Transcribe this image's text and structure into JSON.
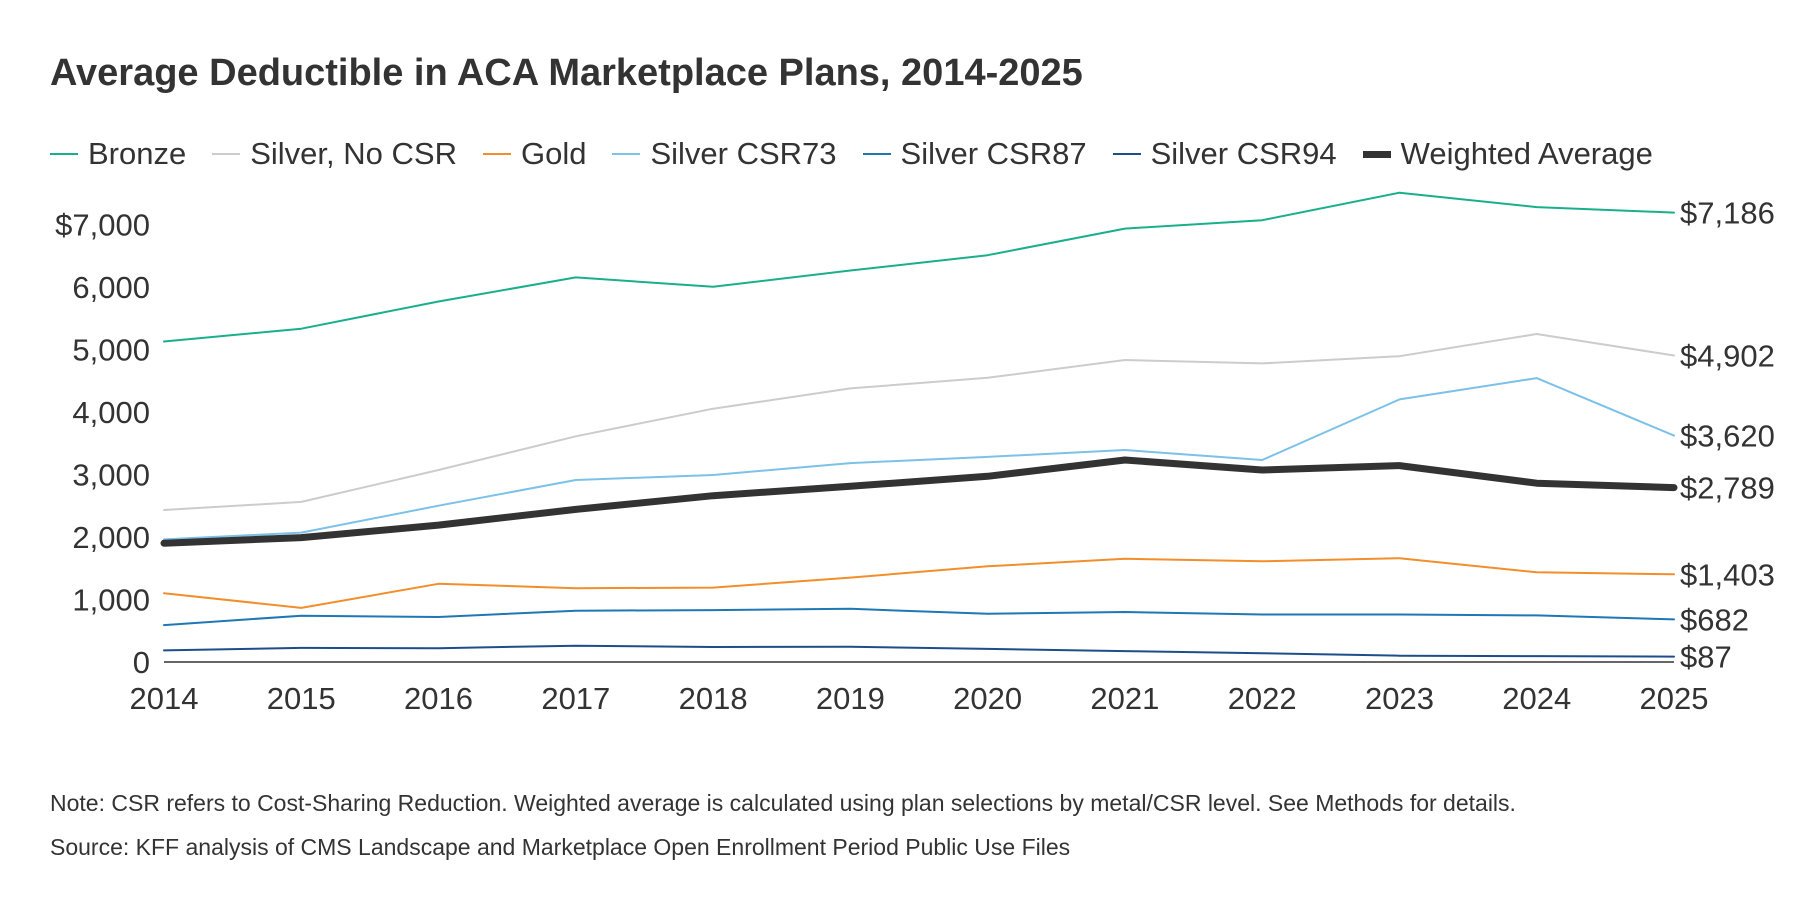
{
  "chart_data": {
    "type": "line",
    "title": "Average Deductible in ACA Marketplace Plans, 2014-2025",
    "x": [
      "2014",
      "2015",
      "2016",
      "2017",
      "2018",
      "2019",
      "2020",
      "2021",
      "2022",
      "2023",
      "2024",
      "2025"
    ],
    "ylim": [
      0,
      7500
    ],
    "y_ticks": [
      {
        "value": 0,
        "label": "0"
      },
      {
        "value": 1000,
        "label": "1,000"
      },
      {
        "value": 2000,
        "label": "2,000"
      },
      {
        "value": 3000,
        "label": "3,000"
      },
      {
        "value": 4000,
        "label": "4,000"
      },
      {
        "value": 5000,
        "label": "5,000"
      },
      {
        "value": 6000,
        "label": "6,000"
      },
      {
        "value": 7000,
        "label": "$7,000"
      }
    ],
    "grid": false,
    "legend_position": "top-left",
    "series": [
      {
        "name": "Bronze",
        "color": "#1aaf8b",
        "width": 2,
        "end_label": "$7,186",
        "values": [
          5125,
          5330,
          5765,
          6150,
          6000,
          6260,
          6505,
          6930,
          7065,
          7505,
          7275,
          7186
        ]
      },
      {
        "name": "Silver, No CSR",
        "color": "#cccccc",
        "width": 2,
        "end_label": "$4,902",
        "values": [
          2430,
          2560,
          3070,
          3610,
          4050,
          4375,
          4545,
          4830,
          4775,
          4890,
          5245,
          4902
        ]
      },
      {
        "name": "Gold",
        "color": "#f28e2b",
        "width": 2,
        "end_label": "$1,403",
        "values": [
          1100,
          865,
          1250,
          1180,
          1190,
          1350,
          1530,
          1650,
          1610,
          1660,
          1435,
          1403
        ]
      },
      {
        "name": "Silver CSR73",
        "color": "#7cc1e8",
        "width": 2,
        "end_label": "$3,620",
        "values": [
          1960,
          2070,
          2500,
          2910,
          2990,
          3180,
          3280,
          3390,
          3230,
          4200,
          4540,
          3620
        ]
      },
      {
        "name": "Silver CSR87",
        "color": "#1f77b4",
        "width": 2,
        "end_label": "$682",
        "values": [
          590,
          740,
          720,
          820,
          830,
          850,
          770,
          800,
          760,
          760,
          745,
          682
        ]
      },
      {
        "name": "Silver CSR94",
        "color": "#1d4e89",
        "width": 2,
        "end_label": "$87",
        "values": [
          185,
          225,
          220,
          260,
          240,
          245,
          210,
          175,
          140,
          100,
          95,
          87
        ]
      },
      {
        "name": "Weighted Average",
        "color": "#333333",
        "width": 7,
        "end_label": "$2,789",
        "values": [
          1900,
          1990,
          2190,
          2440,
          2660,
          2810,
          2970,
          3230,
          3070,
          3140,
          2860,
          2789
        ]
      }
    ]
  },
  "footer": {
    "note": "Note: CSR refers to Cost-Sharing Reduction. Weighted average is calculated using plan selections by metal/CSR level. See Methods for details.",
    "source": "Source: KFF analysis of CMS Landscape and Marketplace Open Enrollment Period Public Use Files"
  }
}
